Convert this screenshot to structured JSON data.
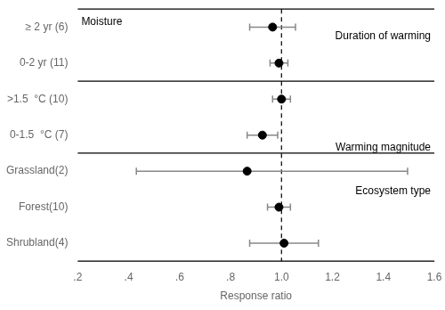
{
  "chart_data": {
    "type": "scatter",
    "orientation": "horizontal",
    "categories": [
      "≥ 2 yr (6)",
      "0-2 yr (11)",
      ">1.5  °C (10)",
      "0-1.5  °C (7)",
      "Grassland(2)",
      "Forest(10)",
      "Shrubland(4)"
    ],
    "values": [
      0.965,
      0.99,
      1.0,
      0.925,
      0.865,
      0.99,
      1.01
    ],
    "ci_low": [
      0.875,
      0.955,
      0.965,
      0.865,
      0.43,
      0.945,
      0.875
    ],
    "ci_high": [
      1.055,
      1.025,
      1.035,
      0.985,
      1.495,
      1.035,
      1.145
    ],
    "color": "#000000",
    "xlabel": "Response ratio",
    "xlim": [
      0.2,
      1.6
    ],
    "xticks": [
      {
        "value": 0.2,
        "label": ".2"
      },
      {
        "value": 0.4,
        "label": ".4"
      },
      {
        "value": 0.6,
        "label": ".6"
      },
      {
        "value": 0.8,
        "label": ".8"
      },
      {
        "value": 1.0,
        "label": "1.0"
      },
      1.2,
      1.4,
      1.6
    ],
    "reference_line": 1.0,
    "annotations": [
      "Moisture",
      "Duration of warming",
      "Warming magnitude",
      "Ecosystem type"
    ],
    "grid": false
  }
}
